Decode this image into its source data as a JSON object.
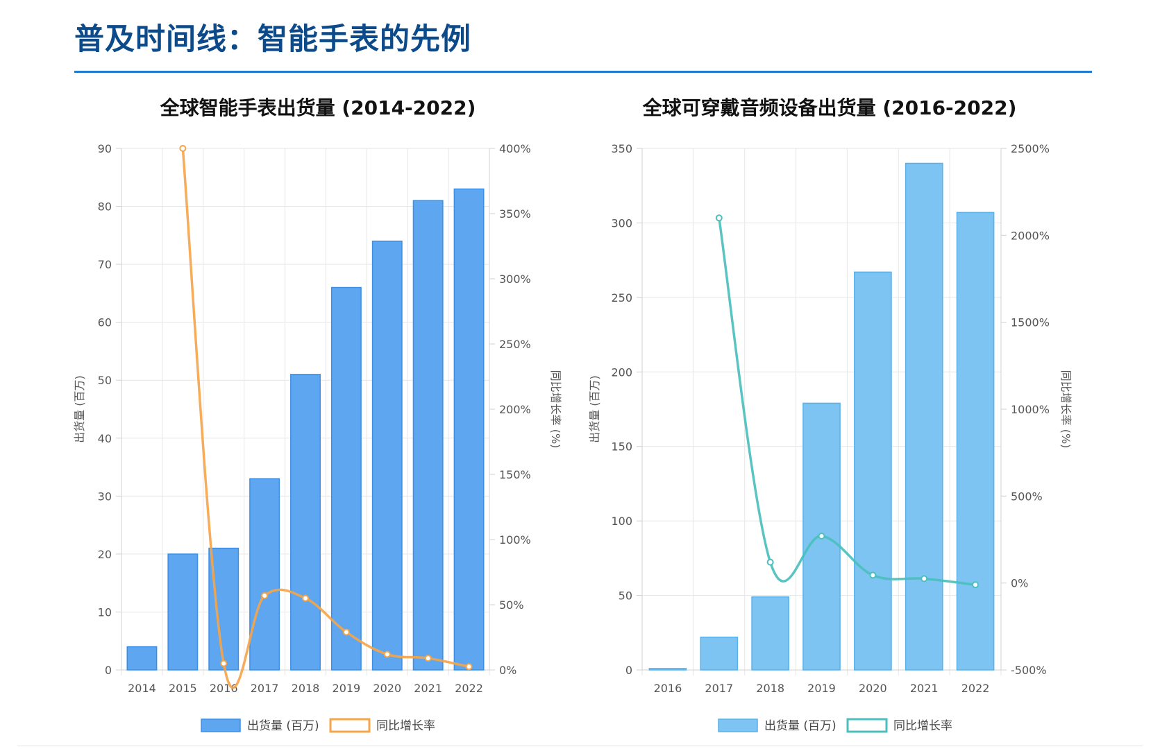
{
  "page": {
    "title": "普及时间线：智能手表的先例"
  },
  "chart_data": [
    {
      "type": "bar",
      "title": "全球智能手表出货量 (2014-2022)",
      "categories": [
        "2014",
        "2015",
        "2016",
        "2017",
        "2018",
        "2019",
        "2020",
        "2021",
        "2022"
      ],
      "series": [
        {
          "name": "出货量 (百万)",
          "kind": "bar",
          "axis": "left",
          "values": [
            4,
            20,
            21,
            33,
            51,
            66,
            74,
            81,
            83
          ]
        },
        {
          "name": "同比增长率",
          "kind": "line",
          "axis": "right",
          "values": [
            null,
            400,
            5,
            57,
            55,
            29,
            12,
            9,
            2.5
          ]
        }
      ],
      "ylabel": "出货量 (百万)",
      "ylabel_right": "同比增长率 (%)",
      "ylim": [
        0,
        90
      ],
      "yticks": [
        0,
        10,
        20,
        30,
        40,
        50,
        60,
        70,
        80,
        90
      ],
      "ylim_right": [
        0,
        400
      ],
      "yticks_right": [
        "0%",
        "50%",
        "100%",
        "150%",
        "200%",
        "250%",
        "300%",
        "350%",
        "400%"
      ],
      "bar_color": "#5ea6ef",
      "bar_border": "#3b8fe6",
      "line_color": "#f5a54a",
      "legend": "bottom"
    },
    {
      "type": "bar",
      "title": "全球可穿戴音频设备出货量 (2016-2022)",
      "categories": [
        "2016",
        "2017",
        "2018",
        "2019",
        "2020",
        "2021",
        "2022"
      ],
      "series": [
        {
          "name": "出货量 (百万)",
          "kind": "bar",
          "axis": "left",
          "values": [
            1,
            22,
            49,
            179,
            267,
            340,
            307
          ]
        },
        {
          "name": "同比增长率",
          "kind": "line",
          "axis": "right",
          "values": [
            null,
            2100,
            120,
            270,
            45,
            25,
            -10
          ]
        }
      ],
      "ylabel": "出货量 (百万)",
      "ylabel_right": "同比增长率 (%)",
      "ylim": [
        0,
        350
      ],
      "yticks": [
        0,
        50,
        100,
        150,
        200,
        250,
        300,
        350
      ],
      "ylim_right": [
        -500,
        2500
      ],
      "yticks_right": [
        "-500%",
        "0%",
        "500%",
        "1000%",
        "1500%",
        "2000%",
        "2500%"
      ],
      "bar_color": "#7ec4f2",
      "bar_border": "#5ab1ea",
      "line_color": "#4bbfbd",
      "legend": "bottom"
    }
  ]
}
